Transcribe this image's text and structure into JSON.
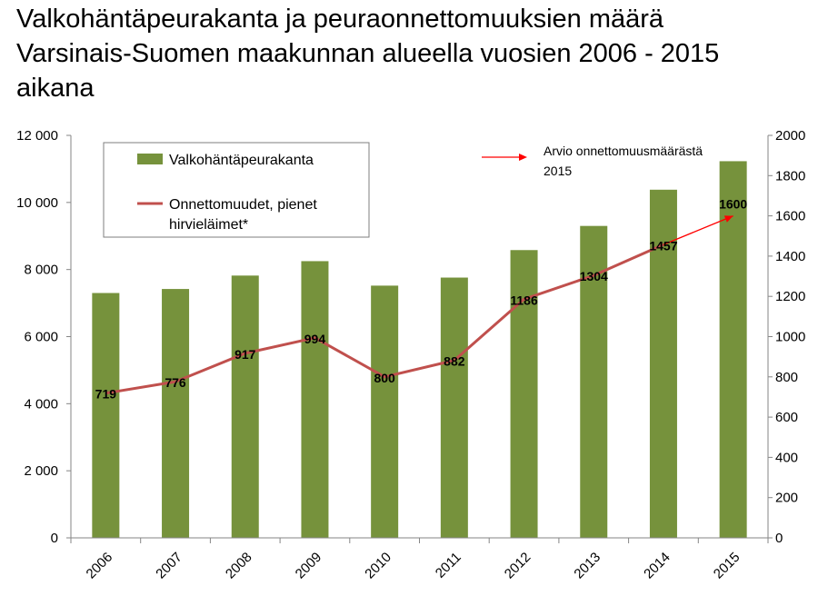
{
  "chart_data": {
    "type": "bar",
    "title": "Valkohäntäpeurakanta ja peuraonnettomuuksien määrä\nVarsinais-Suomen maakunnan alueella vuosien 2006 - 2015\naikana",
    "categories": [
      "2006",
      "2007",
      "2008",
      "2009",
      "2010",
      "2011",
      "2012",
      "2013",
      "2014",
      "2015"
    ],
    "series": [
      {
        "name": "Valkohäntäpeurakanta",
        "type": "bar",
        "axis": "left",
        "color": "#76923c",
        "values": [
          7300,
          7420,
          7820,
          8250,
          7520,
          7760,
          8580,
          9300,
          10380,
          11230
        ]
      },
      {
        "name": "Onnettomuudet, pienet hirvieläimet*",
        "type": "line",
        "axis": "right",
        "color": "#c0504d",
        "values": [
          719,
          776,
          917,
          994,
          800,
          882,
          1186,
          1304,
          1457,
          1600
        ]
      }
    ],
    "y_left": {
      "min": 0,
      "max": 12000,
      "ticks": [
        "0",
        "2 000",
        "4 000",
        "6 000",
        "8 000",
        "10 000",
        "12 000"
      ]
    },
    "y_right": {
      "min": 0,
      "max": 2000,
      "ticks": [
        "0",
        "200",
        "400",
        "600",
        "800",
        "1000",
        "1200",
        "1400",
        "1600",
        "1800",
        "2000"
      ]
    },
    "data_labels": [
      "719",
      "776",
      "917",
      "994",
      "800",
      "882",
      "1186",
      "1304",
      "1457",
      "1600"
    ],
    "legend": {
      "position": "top-left",
      "bar_label": "Valkohäntäpeurakanta",
      "line_label_1": "Onnettomuudet, pienet",
      "line_label_2": "hirvieläimet*"
    },
    "annotation": {
      "line1": "Arvio onnettomuusmäärästä",
      "line2": "2015",
      "arrow_color": "#ff0000"
    },
    "grid": false
  }
}
